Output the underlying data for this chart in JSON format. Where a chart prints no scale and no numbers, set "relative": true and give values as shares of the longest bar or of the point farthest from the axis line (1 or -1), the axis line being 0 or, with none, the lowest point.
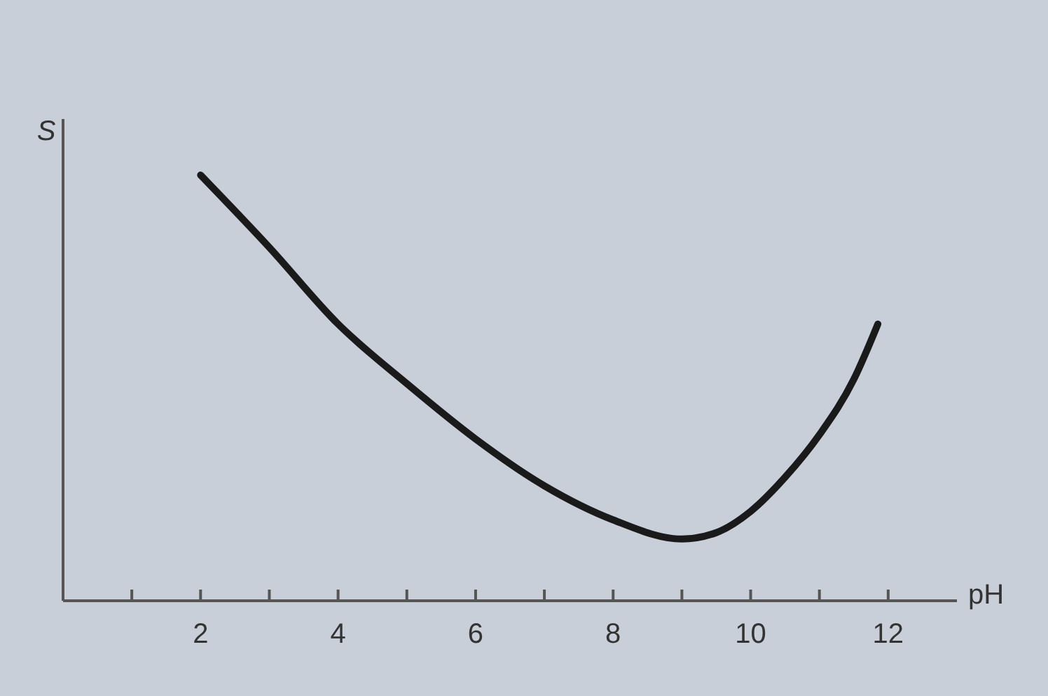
{
  "chart_data": {
    "type": "line",
    "xlabel": "pH",
    "ylabel": "S",
    "relative": true,
    "xlim": [
      0,
      13
    ],
    "xticks": [
      {
        "value": 1,
        "label": null
      },
      2,
      {
        "value": 3,
        "label": null
      },
      4,
      {
        "value": 5,
        "label": null
      },
      6,
      {
        "value": 7,
        "label": null
      },
      8,
      {
        "value": 9,
        "label": null
      },
      10,
      {
        "value": 11,
        "label": null
      },
      12
    ],
    "series": [
      {
        "color": "#1a1a1a",
        "x": [
          2,
          3,
          4,
          5,
          6,
          7,
          8,
          9,
          9.5,
          10,
          10.5,
          11,
          11.5,
          11.85
        ],
        "values": [
          1,
          0.83,
          0.65,
          0.51,
          0.38,
          0.27,
          0.19,
          0.145,
          0.16,
          0.21,
          0.29,
          0.39,
          0.52,
          0.65
        ]
      }
    ],
    "grid": false,
    "marker": "none",
    "line_style": "solid"
  }
}
